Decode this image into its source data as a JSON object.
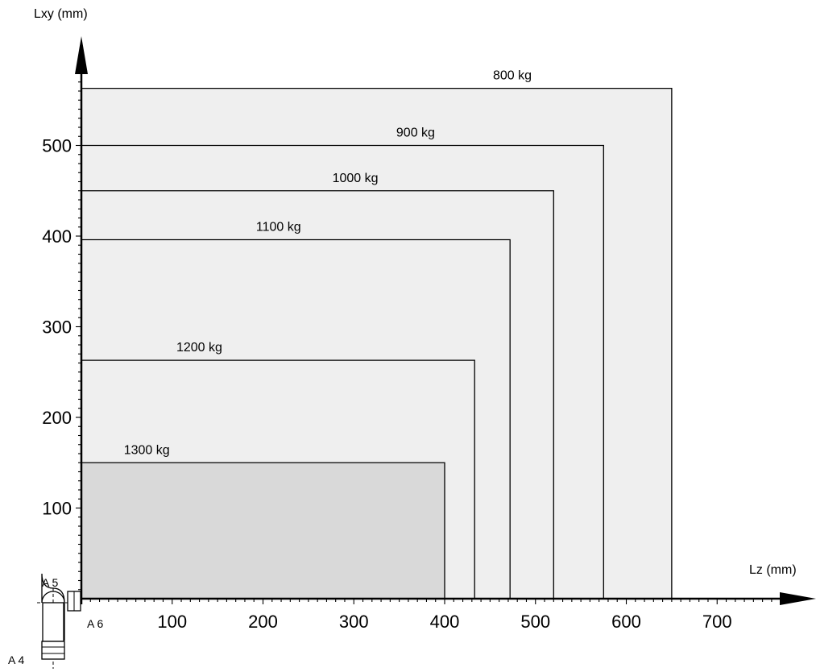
{
  "chart_data": {
    "type": "area",
    "title": "",
    "xlabel": "Lz (mm)",
    "ylabel": "Lxy (mm)",
    "xlim": [
      0,
      790
    ],
    "ylim": [
      0,
      590
    ],
    "x_ticks": [
      100,
      200,
      300,
      400,
      500,
      600,
      700
    ],
    "y_ticks": [
      100,
      200,
      300,
      400,
      500
    ],
    "grid": false,
    "envelopes": [
      {
        "name": "800 kg",
        "lz_max": 650,
        "lxy_max": 563,
        "fill": "#efefef"
      },
      {
        "name": "900 kg",
        "lz_max": 575,
        "lxy_max": 500,
        "fill": "#efefef"
      },
      {
        "name": "1000 kg",
        "lz_max": 520,
        "lxy_max": 450,
        "fill": "#efefef"
      },
      {
        "name": "1100 kg",
        "lz_max": 472,
        "lxy_max": 396,
        "fill": "#efefef"
      },
      {
        "name": "1200 kg",
        "lz_max": 433,
        "lxy_max": 263,
        "fill": "#efefef"
      },
      {
        "name": "1300 kg",
        "lz_max": 400,
        "lxy_max": 150,
        "fill": "#d9d9d9"
      }
    ],
    "joint_labels": [
      "A 5",
      "A 6",
      "A 4"
    ]
  }
}
